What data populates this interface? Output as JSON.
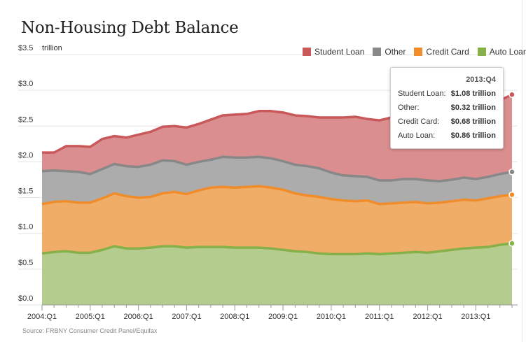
{
  "title": "Non-Housing Debt Balance",
  "legend": [
    {
      "label": "Student Loan",
      "color": "#c9585a"
    },
    {
      "label": "Other",
      "color": "#888888"
    },
    {
      "label": "Credit Card",
      "color": "#f08c2a"
    },
    {
      "label": "Auto Loan",
      "color": "#86b04a"
    }
  ],
  "tooltip": {
    "period": "2013:Q4",
    "rows": [
      {
        "label": "Student Loan:",
        "value": "$1.08 trillion"
      },
      {
        "label": "Other:",
        "value": "$0.32 trillion"
      },
      {
        "label": "Credit Card:",
        "value": "$0.68 trillion"
      },
      {
        "label": "Auto Loan:",
        "value": "$0.86 trillion"
      }
    ]
  },
  "source": "Source: FRBNY Consumer Credit Panel/Equifax",
  "chart_data": {
    "type": "area",
    "stacked": true,
    "title": "Non-Housing Debt Balance",
    "ylabel": "trillion",
    "ylim": [
      0,
      3.5
    ],
    "yticks": [
      "$0.0",
      "$0.5",
      "$1.0",
      "$1.5",
      "$2.0",
      "$2.5",
      "$3.0",
      "$3.5"
    ],
    "ytick_values": [
      0,
      0.5,
      1.0,
      1.5,
      2.0,
      2.5,
      3.0,
      3.5
    ],
    "xtick_labels": [
      "2004:Q1",
      "2005:Q1",
      "2006:Q1",
      "2007:Q1",
      "2008:Q1",
      "2009:Q1",
      "2010:Q1",
      "2011:Q1",
      "2012:Q1",
      "2013:Q1"
    ],
    "grid": true,
    "legend_position": "top-right",
    "x": [
      "2004:Q1",
      "2004:Q2",
      "2004:Q3",
      "2004:Q4",
      "2005:Q1",
      "2005:Q2",
      "2005:Q3",
      "2005:Q4",
      "2006:Q1",
      "2006:Q2",
      "2006:Q3",
      "2006:Q4",
      "2007:Q1",
      "2007:Q2",
      "2007:Q3",
      "2007:Q4",
      "2008:Q1",
      "2008:Q2",
      "2008:Q3",
      "2008:Q4",
      "2009:Q1",
      "2009:Q2",
      "2009:Q3",
      "2009:Q4",
      "2010:Q1",
      "2010:Q2",
      "2010:Q3",
      "2010:Q4",
      "2011:Q1",
      "2011:Q2",
      "2011:Q3",
      "2011:Q4",
      "2012:Q1",
      "2012:Q2",
      "2012:Q3",
      "2012:Q4",
      "2013:Q1",
      "2013:Q2",
      "2013:Q3",
      "2013:Q4"
    ],
    "series": [
      {
        "name": "Auto Loan",
        "color": "#86b04a",
        "fill": "#b4cc8e",
        "values": [
          0.72,
          0.74,
          0.75,
          0.73,
          0.73,
          0.77,
          0.82,
          0.79,
          0.79,
          0.8,
          0.82,
          0.82,
          0.8,
          0.81,
          0.81,
          0.81,
          0.8,
          0.8,
          0.8,
          0.79,
          0.77,
          0.75,
          0.74,
          0.72,
          0.71,
          0.71,
          0.71,
          0.72,
          0.71,
          0.72,
          0.73,
          0.74,
          0.73,
          0.75,
          0.77,
          0.79,
          0.8,
          0.81,
          0.84,
          0.86
        ]
      },
      {
        "name": "Credit Card",
        "color": "#f08c2a",
        "fill": "#f0ad68",
        "values": [
          0.69,
          0.7,
          0.7,
          0.7,
          0.7,
          0.72,
          0.74,
          0.73,
          0.71,
          0.71,
          0.74,
          0.76,
          0.75,
          0.79,
          0.83,
          0.84,
          0.84,
          0.85,
          0.86,
          0.85,
          0.84,
          0.81,
          0.79,
          0.79,
          0.77,
          0.75,
          0.74,
          0.74,
          0.7,
          0.7,
          0.7,
          0.7,
          0.69,
          0.68,
          0.68,
          0.68,
          0.66,
          0.68,
          0.68,
          0.68
        ]
      },
      {
        "name": "Other",
        "color": "#888888",
        "fill": "#acacac",
        "values": [
          0.46,
          0.44,
          0.42,
          0.43,
          0.4,
          0.41,
          0.41,
          0.42,
          0.43,
          0.45,
          0.46,
          0.43,
          0.41,
          0.4,
          0.39,
          0.42,
          0.42,
          0.41,
          0.41,
          0.41,
          0.4,
          0.4,
          0.41,
          0.4,
          0.37,
          0.35,
          0.35,
          0.33,
          0.33,
          0.32,
          0.33,
          0.32,
          0.32,
          0.3,
          0.3,
          0.31,
          0.3,
          0.3,
          0.31,
          0.32
        ]
      },
      {
        "name": "Student Loan",
        "color": "#c9585a",
        "fill": "#db8e8f",
        "values": [
          0.26,
          0.25,
          0.35,
          0.36,
          0.38,
          0.42,
          0.39,
          0.4,
          0.45,
          0.46,
          0.47,
          0.49,
          0.52,
          0.53,
          0.56,
          0.58,
          0.6,
          0.61,
          0.64,
          0.66,
          0.68,
          0.69,
          0.7,
          0.71,
          0.77,
          0.81,
          0.83,
          0.81,
          0.84,
          0.88,
          0.89,
          0.89,
          0.91,
          0.91,
          0.92,
          0.95,
          0.96,
          0.96,
          1.03,
          1.08
        ]
      }
    ]
  }
}
